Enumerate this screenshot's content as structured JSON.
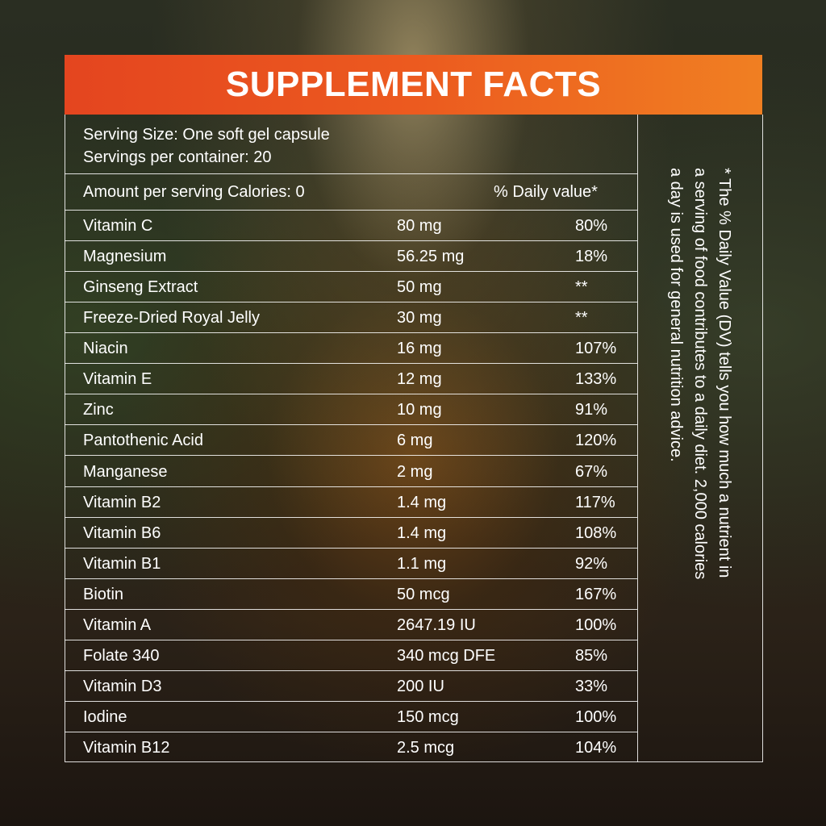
{
  "header": {
    "title": "SUPPLEMENT FACTS"
  },
  "serving": {
    "size": "Serving Size: One soft gel capsule",
    "containers": "Servings per container: 20"
  },
  "table": {
    "header": {
      "amount": "Amount per serving Calories: 0",
      "dv": "% Daily value*"
    },
    "rows": [
      [
        "Vitamin C",
        "80 mg",
        "80%"
      ],
      [
        "Magnesium",
        "56.25 mg",
        "18%"
      ],
      [
        "Ginseng Extract",
        "50 mg",
        "**"
      ],
      [
        "Freeze-Dried Royal Jelly",
        "30 mg",
        "**"
      ],
      [
        "Niacin",
        "16 mg",
        "107%"
      ],
      [
        "Vitamin E",
        "12 mg",
        "133%"
      ],
      [
        "Zinc",
        "10 mg",
        "91%"
      ],
      [
        "Pantothenic Acid",
        "6 mg",
        "120%"
      ],
      [
        "Manganese",
        "2 mg",
        "67%"
      ],
      [
        "Vitamin B2",
        "1.4 mg",
        "117%"
      ],
      [
        "Vitamin B6",
        "1.4 mg",
        "108%"
      ],
      [
        "Vitamin B1",
        "1.1 mg",
        "92%"
      ],
      [
        "Biotin",
        "50 mcg",
        "167%"
      ],
      [
        "Vitamin A",
        "2647.19 IU",
        "100%"
      ],
      [
        "Folate 340",
        "340 mcg DFE",
        "85%"
      ],
      [
        "Vitamin D3",
        "200 IU",
        "33%"
      ],
      [
        "Iodine",
        "150 mcg",
        "100%"
      ],
      [
        "Vitamin B12",
        "2.5 mcg",
        "104%"
      ]
    ]
  },
  "note": {
    "lines": [
      "* The % Daily Value (DV) tells you how much a nutrient in",
      "a serving of food contributes to a daily diet. 2,000 calories",
      "a day is used for general nutrition advice."
    ]
  }
}
